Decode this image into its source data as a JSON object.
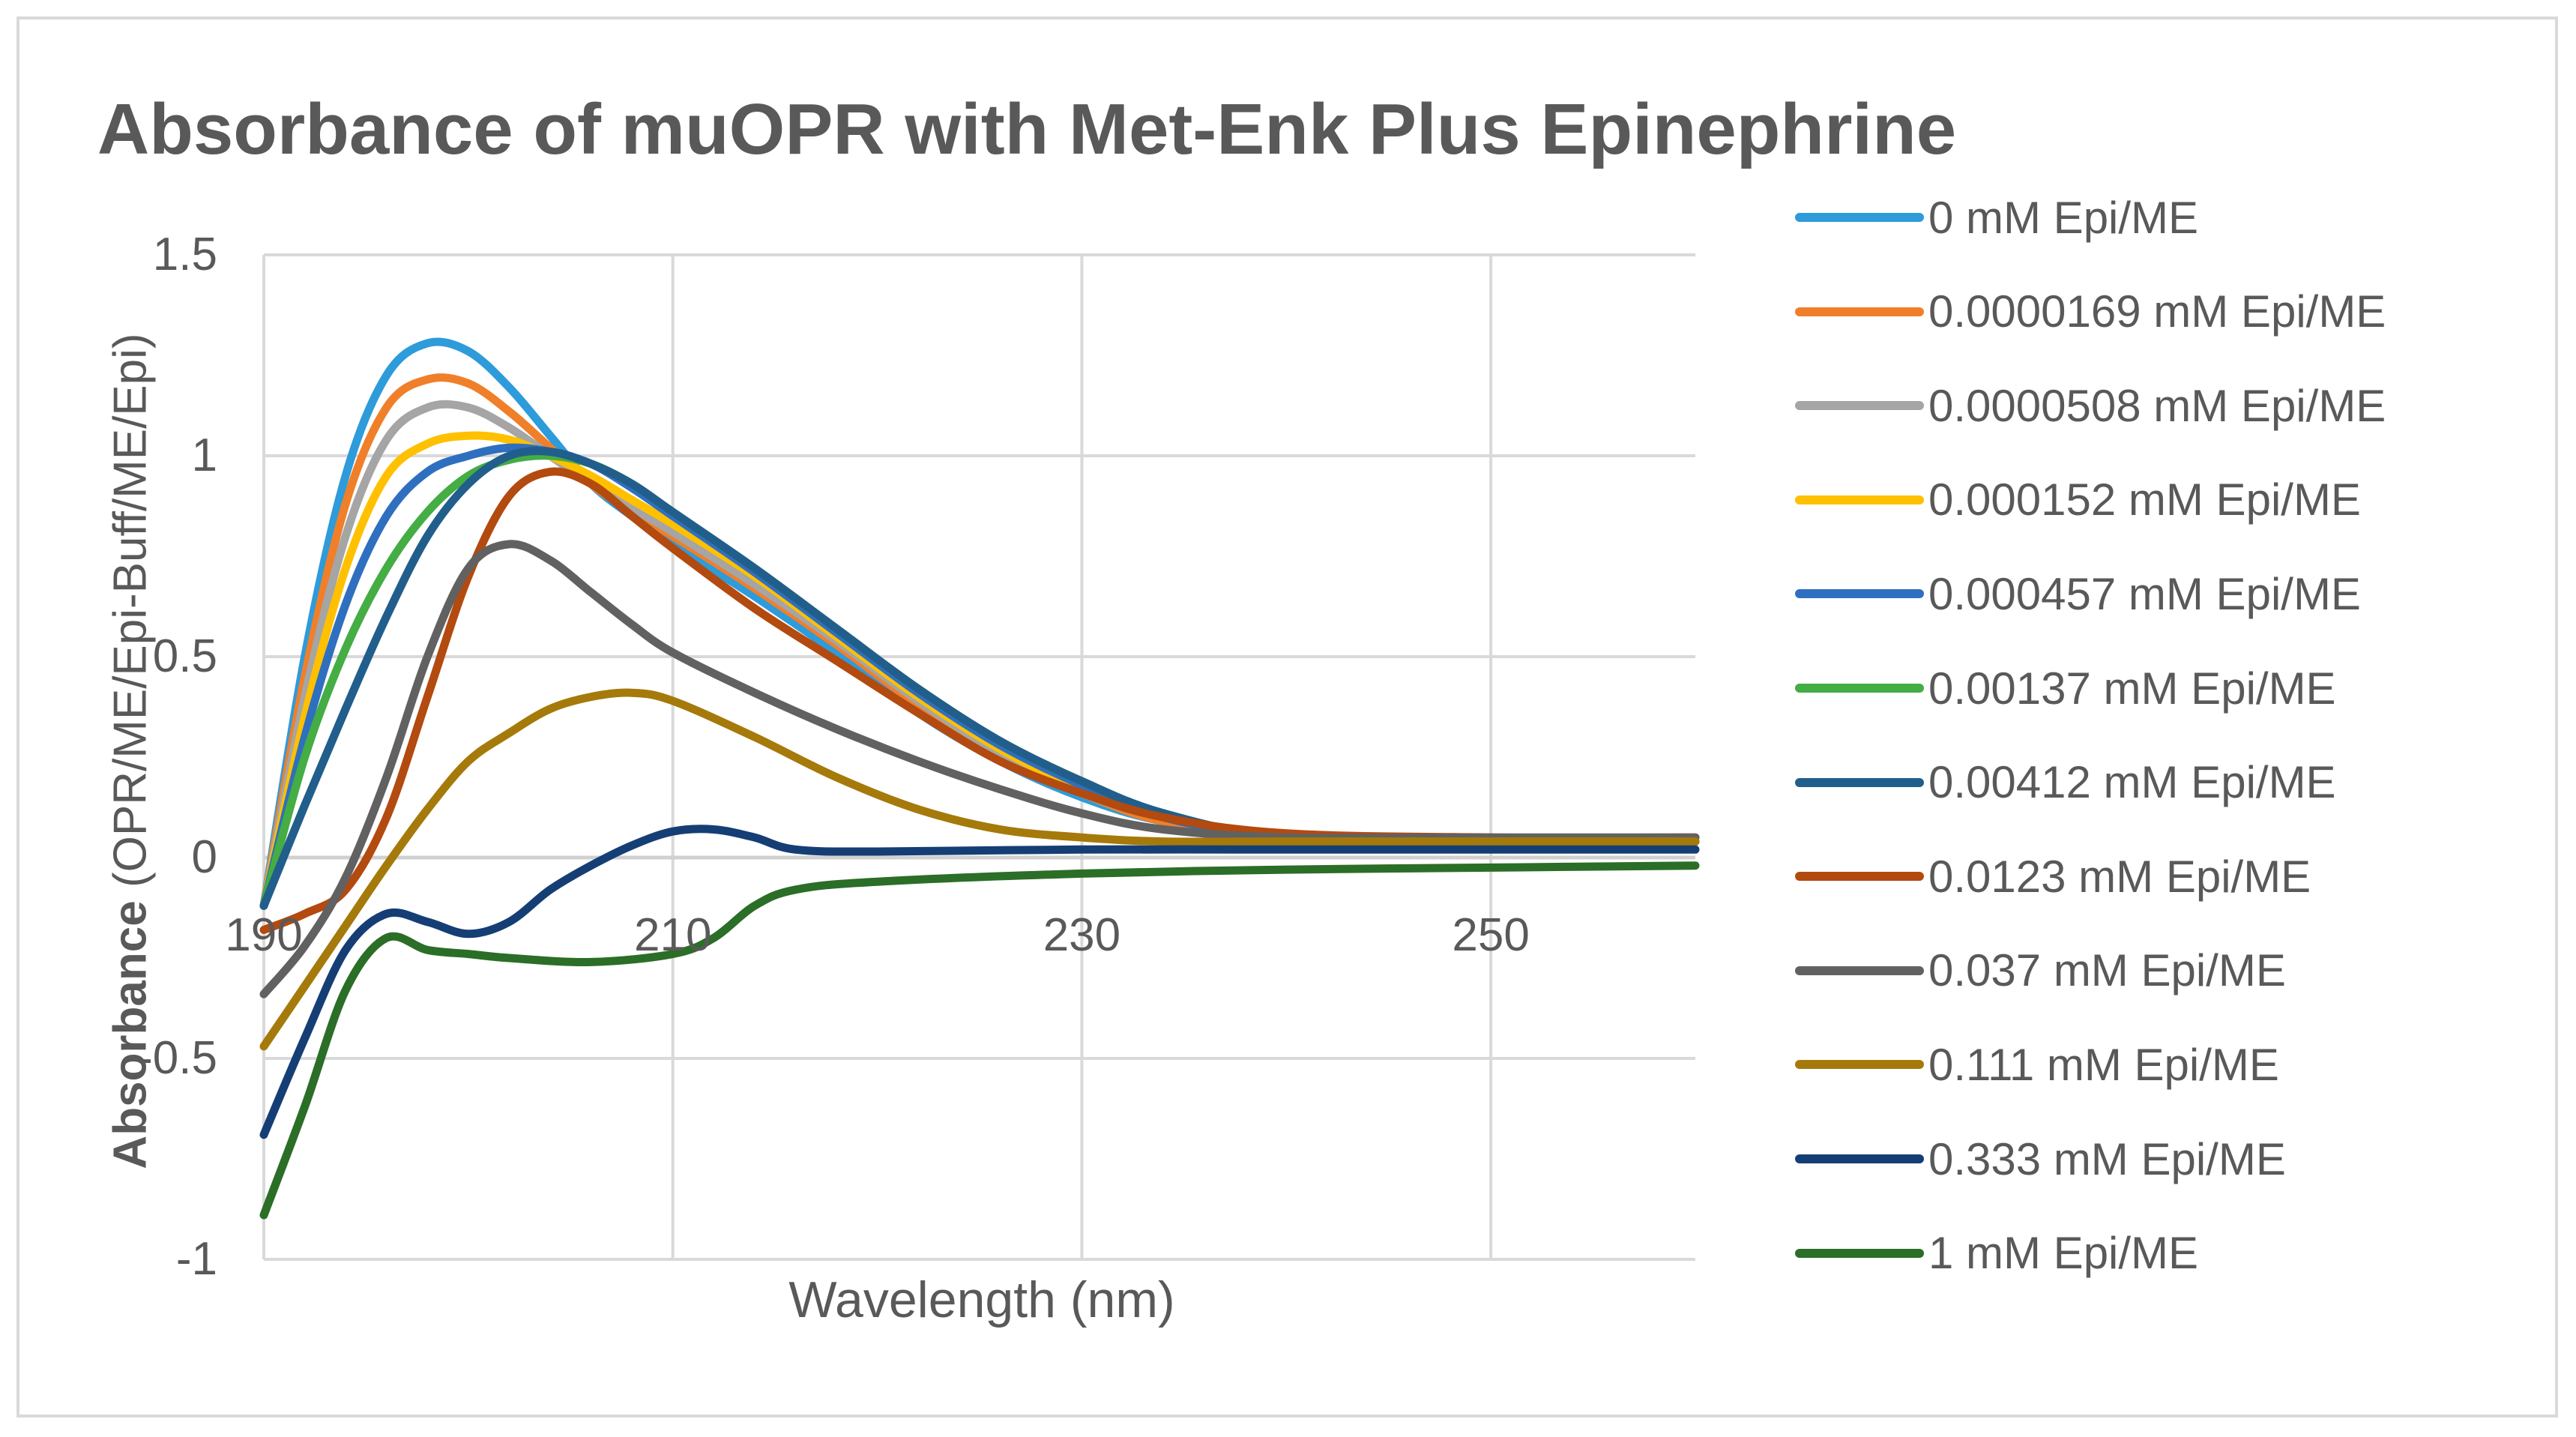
{
  "chart_data": {
    "type": "line",
    "title": "Absorbance of muOPR with  Met-Enk Plus Epinephrine",
    "xlabel": "Wavelength (nm)",
    "ylabel_bold": "Absorbance",
    "ylabel_rest": " (OPR/ME/Epi-Buff/ME/Epi)",
    "xlim": [
      190,
      260
    ],
    "ylim": [
      -1,
      1.5
    ],
    "x_ticks": [
      190,
      210,
      230,
      250
    ],
    "y_ticks": [
      -1,
      -0.5,
      0,
      0.5,
      1,
      1.5
    ],
    "x_tick_labels": [
      "190",
      "210",
      "230",
      "250"
    ],
    "y_tick_labels": [
      "-1",
      "-0.5",
      "0",
      "0.5",
      "1",
      "1.5"
    ],
    "grid": "major vertical and horizontal",
    "legend_position": "right",
    "series": [
      {
        "name": "0 mM Epi/ME",
        "color": "#2E9BDA",
        "points": [
          [
            190,
            -0.12
          ],
          [
            192,
            0.5
          ],
          [
            194,
            0.95
          ],
          [
            196,
            1.2
          ],
          [
            198,
            1.28
          ],
          [
            200,
            1.26
          ],
          [
            202,
            1.17
          ],
          [
            204,
            1.05
          ],
          [
            206,
            0.93
          ],
          [
            208,
            0.85
          ],
          [
            210,
            0.78
          ],
          [
            214,
            0.65
          ],
          [
            218,
            0.51
          ],
          [
            222,
            0.36
          ],
          [
            226,
            0.24
          ],
          [
            230,
            0.15
          ],
          [
            234,
            0.09
          ],
          [
            240,
            0.05
          ],
          [
            250,
            0.04
          ],
          [
            260,
            0.04
          ]
        ]
      },
      {
        "name": "0.0000169 mM Epi/ME",
        "color": "#F07F2A",
        "points": [
          [
            190,
            -0.12
          ],
          [
            192,
            0.45
          ],
          [
            194,
            0.88
          ],
          [
            196,
            1.12
          ],
          [
            198,
            1.19
          ],
          [
            200,
            1.18
          ],
          [
            202,
            1.11
          ],
          [
            204,
            1.02
          ],
          [
            206,
            0.93
          ],
          [
            208,
            0.86
          ],
          [
            210,
            0.8
          ],
          [
            214,
            0.67
          ],
          [
            218,
            0.53
          ],
          [
            222,
            0.38
          ],
          [
            226,
            0.25
          ],
          [
            230,
            0.16
          ],
          [
            234,
            0.09
          ],
          [
            240,
            0.05
          ],
          [
            250,
            0.04
          ],
          [
            260,
            0.04
          ]
        ]
      },
      {
        "name": "0.0000508 mM Epi/ME",
        "color": "#A5A5A5",
        "points": [
          [
            190,
            -0.12
          ],
          [
            192,
            0.4
          ],
          [
            194,
            0.8
          ],
          [
            196,
            1.04
          ],
          [
            198,
            1.12
          ],
          [
            200,
            1.12
          ],
          [
            202,
            1.07
          ],
          [
            204,
            1.0
          ],
          [
            206,
            0.93
          ],
          [
            208,
            0.87
          ],
          [
            210,
            0.81
          ],
          [
            214,
            0.68
          ],
          [
            218,
            0.54
          ],
          [
            222,
            0.39
          ],
          [
            226,
            0.26
          ],
          [
            230,
            0.16
          ],
          [
            234,
            0.1
          ],
          [
            240,
            0.05
          ],
          [
            250,
            0.04
          ],
          [
            260,
            0.04
          ]
        ]
      },
      {
        "name": "0.000152 mM Epi/ME",
        "color": "#FFC000",
        "points": [
          [
            190,
            -0.12
          ],
          [
            192,
            0.35
          ],
          [
            194,
            0.72
          ],
          [
            196,
            0.95
          ],
          [
            198,
            1.03
          ],
          [
            200,
            1.05
          ],
          [
            202,
            1.04
          ],
          [
            204,
            1.0
          ],
          [
            206,
            0.95
          ],
          [
            208,
            0.89
          ],
          [
            210,
            0.83
          ],
          [
            214,
            0.7
          ],
          [
            218,
            0.55
          ],
          [
            222,
            0.4
          ],
          [
            226,
            0.27
          ],
          [
            230,
            0.17
          ],
          [
            234,
            0.1
          ],
          [
            240,
            0.05
          ],
          [
            250,
            0.04
          ],
          [
            260,
            0.04
          ]
        ]
      },
      {
        "name": "0.000457 mM Epi/ME",
        "color": "#2F6FBF",
        "points": [
          [
            190,
            -0.12
          ],
          [
            192,
            0.3
          ],
          [
            194,
            0.63
          ],
          [
            196,
            0.85
          ],
          [
            198,
            0.96
          ],
          [
            200,
            1.0
          ],
          [
            202,
            1.02
          ],
          [
            204,
            1.01
          ],
          [
            206,
            0.98
          ],
          [
            208,
            0.92
          ],
          [
            210,
            0.85
          ],
          [
            214,
            0.71
          ],
          [
            218,
            0.56
          ],
          [
            222,
            0.41
          ],
          [
            226,
            0.28
          ],
          [
            230,
            0.18
          ],
          [
            234,
            0.1
          ],
          [
            240,
            0.05
          ],
          [
            250,
            0.04
          ],
          [
            260,
            0.04
          ]
        ]
      },
      {
        "name": "0.00137 mM Epi/ME",
        "color": "#44AD44",
        "points": [
          [
            190,
            -0.12
          ],
          [
            192,
            0.25
          ],
          [
            194,
            0.52
          ],
          [
            196,
            0.72
          ],
          [
            198,
            0.86
          ],
          [
            200,
            0.95
          ],
          [
            202,
            0.99
          ],
          [
            204,
            1.0
          ],
          [
            206,
            0.98
          ],
          [
            208,
            0.93
          ],
          [
            210,
            0.86
          ],
          [
            214,
            0.72
          ],
          [
            218,
            0.57
          ],
          [
            222,
            0.42
          ],
          [
            226,
            0.29
          ],
          [
            230,
            0.19
          ],
          [
            234,
            0.11
          ],
          [
            240,
            0.05
          ],
          [
            250,
            0.04
          ],
          [
            260,
            0.04
          ]
        ]
      },
      {
        "name": "0.00412 mM Epi/ME",
        "color": "#215E8C",
        "points": [
          [
            190,
            -0.12
          ],
          [
            192,
            0.13
          ],
          [
            194,
            0.37
          ],
          [
            196,
            0.6
          ],
          [
            198,
            0.8
          ],
          [
            200,
            0.93
          ],
          [
            202,
            1.0
          ],
          [
            204,
            1.01
          ],
          [
            206,
            0.98
          ],
          [
            208,
            0.93
          ],
          [
            210,
            0.86
          ],
          [
            214,
            0.72
          ],
          [
            218,
            0.57
          ],
          [
            222,
            0.42
          ],
          [
            226,
            0.29
          ],
          [
            230,
            0.19
          ],
          [
            234,
            0.11
          ],
          [
            240,
            0.05
          ],
          [
            250,
            0.04
          ],
          [
            260,
            0.04
          ]
        ]
      },
      {
        "name": "0.0123 mM Epi/ME",
        "color": "#B34A0F",
        "points": [
          [
            190,
            -0.18
          ],
          [
            192,
            -0.14
          ],
          [
            194,
            -0.08
          ],
          [
            196,
            0.1
          ],
          [
            198,
            0.4
          ],
          [
            200,
            0.7
          ],
          [
            202,
            0.9
          ],
          [
            204,
            0.96
          ],
          [
            206,
            0.93
          ],
          [
            208,
            0.85
          ],
          [
            210,
            0.77
          ],
          [
            214,
            0.62
          ],
          [
            218,
            0.49
          ],
          [
            222,
            0.36
          ],
          [
            226,
            0.24
          ],
          [
            230,
            0.16
          ],
          [
            234,
            0.1
          ],
          [
            240,
            0.06
          ],
          [
            250,
            0.05
          ],
          [
            260,
            0.05
          ]
        ]
      },
      {
        "name": "0.037 mM Epi/ME",
        "color": "#616161",
        "points": [
          [
            190,
            -0.34
          ],
          [
            192,
            -0.22
          ],
          [
            194,
            -0.05
          ],
          [
            196,
            0.2
          ],
          [
            198,
            0.5
          ],
          [
            200,
            0.72
          ],
          [
            202,
            0.78
          ],
          [
            204,
            0.74
          ],
          [
            206,
            0.66
          ],
          [
            208,
            0.58
          ],
          [
            210,
            0.51
          ],
          [
            214,
            0.41
          ],
          [
            218,
            0.32
          ],
          [
            222,
            0.24
          ],
          [
            226,
            0.17
          ],
          [
            230,
            0.11
          ],
          [
            234,
            0.07
          ],
          [
            240,
            0.05
          ],
          [
            250,
            0.05
          ],
          [
            260,
            0.05
          ]
        ]
      },
      {
        "name": "0.111 mM Epi/ME",
        "color": "#A57A0B",
        "points": [
          [
            190,
            -0.47
          ],
          [
            192,
            -0.32
          ],
          [
            194,
            -0.17
          ],
          [
            196,
            -0.02
          ],
          [
            198,
            0.12
          ],
          [
            200,
            0.24
          ],
          [
            202,
            0.31
          ],
          [
            204,
            0.37
          ],
          [
            206,
            0.4
          ],
          [
            208,
            0.41
          ],
          [
            210,
            0.39
          ],
          [
            214,
            0.3
          ],
          [
            218,
            0.2
          ],
          [
            222,
            0.12
          ],
          [
            226,
            0.07
          ],
          [
            230,
            0.05
          ],
          [
            234,
            0.04
          ],
          [
            240,
            0.04
          ],
          [
            250,
            0.04
          ],
          [
            260,
            0.04
          ]
        ]
      },
      {
        "name": "0.333 mM Epi/ME",
        "color": "#153E75",
        "points": [
          [
            190,
            -0.69
          ],
          [
            192,
            -0.45
          ],
          [
            194,
            -0.23
          ],
          [
            196,
            -0.14
          ],
          [
            198,
            -0.16
          ],
          [
            200,
            -0.19
          ],
          [
            202,
            -0.16
          ],
          [
            204,
            -0.08
          ],
          [
            206,
            -0.02
          ],
          [
            208,
            0.03
          ],
          [
            210,
            0.065
          ],
          [
            212,
            0.07
          ],
          [
            214,
            0.05
          ],
          [
            216,
            0.02
          ],
          [
            220,
            0.015
          ],
          [
            230,
            0.02
          ],
          [
            240,
            0.02
          ],
          [
            250,
            0.02
          ],
          [
            260,
            0.02
          ]
        ]
      },
      {
        "name": "1 mM Epi/ME",
        "color": "#2B6E27",
        "points": [
          [
            190,
            -0.89
          ],
          [
            192,
            -0.62
          ],
          [
            194,
            -0.33
          ],
          [
            196,
            -0.2
          ],
          [
            198,
            -0.23
          ],
          [
            200,
            -0.24
          ],
          [
            202,
            -0.25
          ],
          [
            206,
            -0.26
          ],
          [
            210,
            -0.24
          ],
          [
            212,
            -0.2
          ],
          [
            214,
            -0.12
          ],
          [
            216,
            -0.08
          ],
          [
            220,
            -0.06
          ],
          [
            230,
            -0.04
          ],
          [
            240,
            -0.03
          ],
          [
            250,
            -0.025
          ],
          [
            260,
            -0.02
          ]
        ]
      }
    ]
  }
}
